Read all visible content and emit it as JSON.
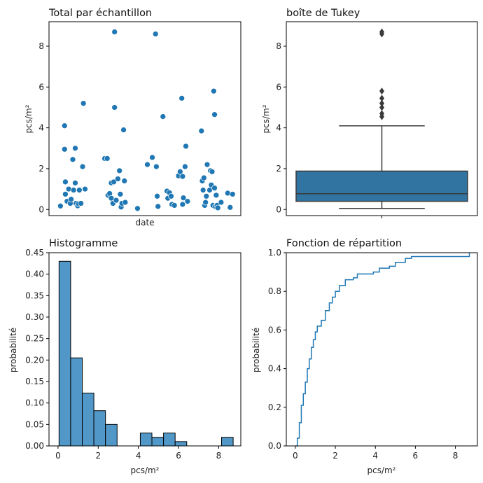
{
  "colors": {
    "primary": "#1f77b4",
    "bar": "#5197c7",
    "box": "#3274a1",
    "ecdf": "#1f77b4",
    "dark": "#3a3a3a"
  },
  "chart_data": [
    {
      "id": "scatter",
      "type": "scatter",
      "title": "Total par échantillon",
      "xlabel": "date",
      "ylabel": "pcs/m²",
      "ylim": [
        -0.3,
        9.2
      ],
      "yticks": [
        0,
        2,
        4,
        6,
        8
      ],
      "x_ticks_shown": false,
      "points": [
        [
          0.02,
          0.17
        ],
        [
          0.045,
          4.1
        ],
        [
          0.045,
          2.95
        ],
        [
          0.05,
          1.35
        ],
        [
          0.05,
          0.75
        ],
        [
          0.06,
          0.4
        ],
        [
          0.07,
          1.0
        ],
        [
          0.08,
          0.3
        ],
        [
          0.085,
          0.5
        ],
        [
          0.095,
          2.45
        ],
        [
          0.1,
          0.95
        ],
        [
          0.11,
          3.0
        ],
        [
          0.11,
          1.3
        ],
        [
          0.115,
          0.3
        ],
        [
          0.125,
          0.18
        ],
        [
          0.13,
          0.28
        ],
        [
          0.135,
          0.95
        ],
        [
          0.145,
          0.3
        ],
        [
          0.155,
          2.1
        ],
        [
          0.16,
          5.2
        ],
        [
          0.17,
          1.0
        ],
        [
          0.29,
          2.5
        ],
        [
          0.305,
          2.5
        ],
        [
          0.31,
          0.7
        ],
        [
          0.32,
          0.78
        ],
        [
          0.33,
          1.3
        ],
        [
          0.33,
          0.55
        ],
        [
          0.34,
          0.3
        ],
        [
          0.345,
          1.35
        ],
        [
          0.35,
          8.7
        ],
        [
          0.35,
          5.0
        ],
        [
          0.36,
          0.45
        ],
        [
          0.37,
          1.5
        ],
        [
          0.38,
          1.9
        ],
        [
          0.385,
          0.75
        ],
        [
          0.39,
          0.12
        ],
        [
          0.395,
          0.3
        ],
        [
          0.405,
          3.9
        ],
        [
          0.41,
          1.4
        ],
        [
          0.415,
          0.35
        ],
        [
          0.49,
          0.05
        ],
        [
          0.55,
          2.2
        ],
        [
          0.58,
          2.55
        ],
        [
          0.6,
          8.6
        ],
        [
          0.605,
          2.1
        ],
        [
          0.61,
          0.65
        ],
        [
          0.615,
          0.15
        ],
        [
          0.645,
          4.55
        ],
        [
          0.67,
          0.9
        ],
        [
          0.675,
          0.55
        ],
        [
          0.685,
          0.82
        ],
        [
          0.695,
          0.65
        ],
        [
          0.7,
          0.25
        ],
        [
          0.715,
          0.2
        ],
        [
          0.74,
          1.65
        ],
        [
          0.75,
          1.85
        ],
        [
          0.76,
          5.45
        ],
        [
          0.765,
          1.62
        ],
        [
          0.765,
          0.25
        ],
        [
          0.77,
          0.57
        ],
        [
          0.78,
          2.1
        ],
        [
          0.785,
          3.1
        ],
        [
          0.795,
          0.4
        ],
        [
          0.88,
          3.85
        ],
        [
          0.885,
          1.4
        ],
        [
          0.89,
          0.95
        ],
        [
          0.895,
          1.55
        ],
        [
          0.9,
          0.2
        ],
        [
          0.905,
          0.35
        ],
        [
          0.91,
          0.65
        ],
        [
          0.915,
          2.2
        ],
        [
          0.93,
          0.95
        ],
        [
          0.935,
          1.9
        ],
        [
          0.94,
          1.2
        ],
        [
          0.945,
          1.85
        ],
        [
          0.95,
          0.2
        ],
        [
          0.955,
          5.8
        ],
        [
          0.96,
          1.05
        ],
        [
          0.96,
          4.65
        ],
        [
          0.965,
          0.15
        ],
        [
          0.97,
          0.7
        ],
        [
          0.975,
          0.2
        ],
        [
          0.98,
          0.08
        ],
        [
          1.0,
          0.35
        ],
        [
          1.04,
          0.8
        ],
        [
          1.055,
          0.1
        ],
        [
          1.07,
          0.75
        ]
      ]
    },
    {
      "id": "box",
      "type": "box",
      "title": "boîte de Tukey",
      "ylabel": "pcs/m²",
      "ylim": [
        -0.3,
        9.2
      ],
      "yticks": [
        0,
        2,
        4,
        6,
        8
      ],
      "q1": 0.4,
      "median": 0.77,
      "q3": 1.88,
      "whisker_low": 0.05,
      "whisker_high": 4.1,
      "outliers": [
        4.55,
        4.7,
        5.0,
        5.2,
        5.45,
        5.8,
        8.6,
        8.7
      ]
    },
    {
      "id": "hist",
      "type": "bar",
      "title": "Histogramme",
      "xlabel": "pcs/m²",
      "ylabel": "probabilité",
      "xlim": [
        -0.45,
        9.1
      ],
      "ylim": [
        0,
        0.45
      ],
      "xticks": [
        0,
        2,
        4,
        6,
        8
      ],
      "yticks": [
        0,
        0.05,
        0.1,
        0.15,
        0.2,
        0.25,
        0.3,
        0.35,
        0.4,
        0.45
      ],
      "ytick_labels": [
        "0.00",
        "0.05",
        "0.10",
        "0.15",
        "0.20",
        "0.25",
        "0.30",
        "0.35",
        "0.40",
        "0.45"
      ],
      "bin_start": 0.05,
      "bin_width": 0.578,
      "values": [
        0.43,
        0.205,
        0.123,
        0.082,
        0.05,
        0,
        0,
        0.03,
        0.02,
        0.03,
        0.01,
        0,
        0,
        0,
        0.02
      ]
    },
    {
      "id": "ecdf",
      "type": "line",
      "title": "Fonction de répartition",
      "xlabel": "pcs/m²",
      "ylabel": "probabilité",
      "xlim": [
        -0.45,
        9.1
      ],
      "ylim": [
        0,
        1
      ],
      "xticks": [
        0,
        2,
        4,
        6,
        8
      ],
      "yticks": [
        0,
        0.2,
        0.4,
        0.6,
        0.8,
        1.0
      ],
      "ytick_labels": [
        "0.0",
        "0.2",
        "0.4",
        "0.6",
        "0.8",
        "1.0"
      ],
      "curve": [
        [
          0.02,
          0
        ],
        [
          0.1,
          0.04
        ],
        [
          0.2,
          0.12
        ],
        [
          0.3,
          0.21
        ],
        [
          0.4,
          0.27
        ],
        [
          0.5,
          0.33
        ],
        [
          0.6,
          0.4
        ],
        [
          0.7,
          0.45
        ],
        [
          0.8,
          0.51
        ],
        [
          0.9,
          0.55
        ],
        [
          1.0,
          0.59
        ],
        [
          1.1,
          0.62
        ],
        [
          1.3,
          0.65
        ],
        [
          1.5,
          0.7
        ],
        [
          1.7,
          0.74
        ],
        [
          1.85,
          0.77
        ],
        [
          2.0,
          0.8
        ],
        [
          2.2,
          0.83
        ],
        [
          2.5,
          0.86
        ],
        [
          2.9,
          0.87
        ],
        [
          3.1,
          0.89
        ],
        [
          3.9,
          0.9
        ],
        [
          4.2,
          0.92
        ],
        [
          4.7,
          0.93
        ],
        [
          5.0,
          0.95
        ],
        [
          5.5,
          0.97
        ],
        [
          5.8,
          0.98
        ],
        [
          8.6,
          0.98
        ],
        [
          8.7,
          1.0
        ]
      ]
    }
  ]
}
